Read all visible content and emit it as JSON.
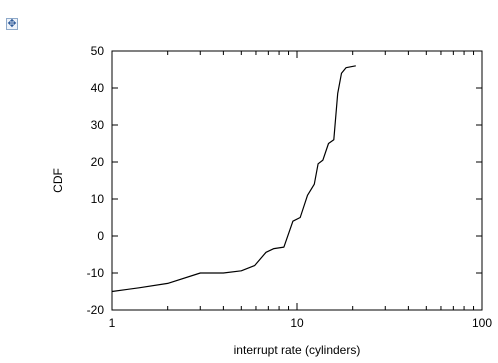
{
  "handle": {
    "icon": "move-icon",
    "glyph": "✥"
  },
  "chart_data": {
    "type": "line",
    "title": "",
    "xlabel": "interrupt rate (cylinders)",
    "ylabel": "CDF",
    "xscale": "log",
    "xlim": [
      1,
      100
    ],
    "ylim": [
      -20,
      50
    ],
    "xticks": [
      {
        "value": 1,
        "label": "1"
      },
      {
        "value": 10,
        "label": "10"
      },
      {
        "value": 100,
        "label": "100"
      }
    ],
    "yticks": [
      {
        "value": 50,
        "label": "50"
      },
      {
        "value": 40,
        "label": "40"
      },
      {
        "value": 30,
        "label": "30"
      },
      {
        "value": 20,
        "label": "20"
      },
      {
        "value": 10,
        "label": "10"
      },
      {
        "value": 0,
        "label": "0"
      },
      {
        "value": -10,
        "label": "-10"
      },
      {
        "value": -20,
        "label": "-20"
      }
    ],
    "grid": false,
    "legend": "none",
    "series": [
      {
        "color": "#000000",
        "points": [
          [
            1.0,
            -15
          ],
          [
            1.4,
            -14
          ],
          [
            2.0,
            -12.8
          ],
          [
            3.0,
            -10
          ],
          [
            4.0,
            -10
          ],
          [
            5.0,
            -9.4
          ],
          [
            5.9,
            -8
          ],
          [
            6.8,
            -4.4
          ],
          [
            7.5,
            -3.4
          ],
          [
            8.5,
            -3
          ],
          [
            9.5,
            4
          ],
          [
            10.4,
            5
          ],
          [
            11.4,
            11
          ],
          [
            12.4,
            14
          ],
          [
            13.0,
            19.5
          ],
          [
            13.8,
            20.5
          ],
          [
            14.8,
            25
          ],
          [
            15.8,
            26
          ],
          [
            16.6,
            38.5
          ],
          [
            17.4,
            44
          ],
          [
            18.4,
            45.5
          ],
          [
            20.8,
            46
          ]
        ]
      }
    ]
  }
}
